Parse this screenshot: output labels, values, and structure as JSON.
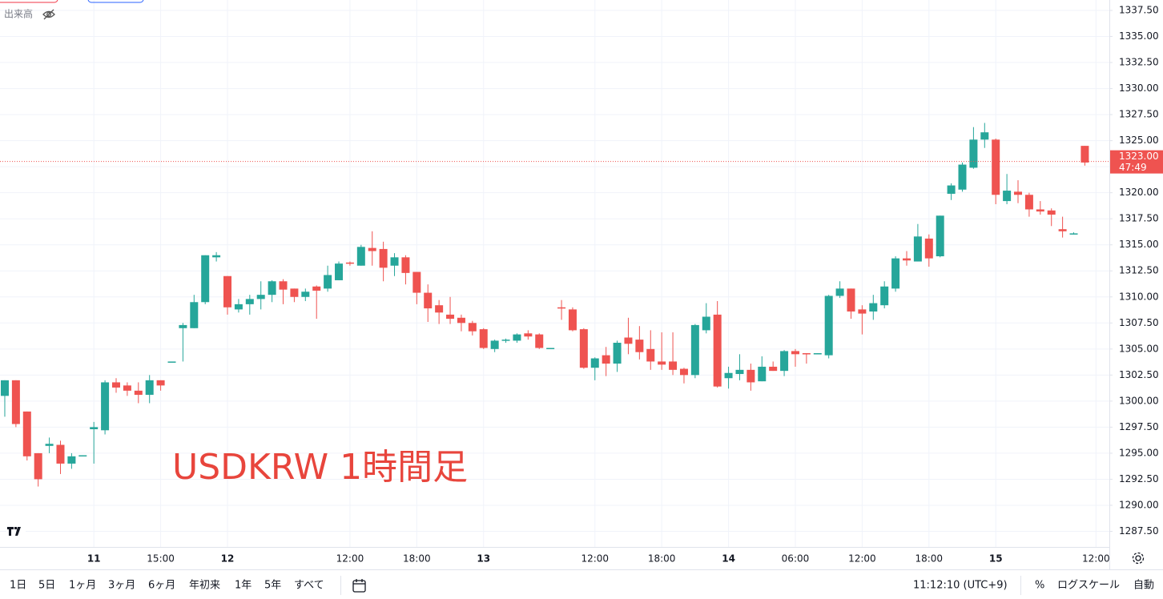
{
  "chart_data": {
    "type": "candlestick",
    "title": "USDKRW 1時間足",
    "x": [
      0,
      1,
      2,
      3,
      4,
      5,
      6,
      7,
      8,
      9,
      10,
      11,
      12,
      13,
      14,
      15,
      16,
      17,
      18,
      19,
      20,
      21,
      22,
      23,
      24,
      25,
      26,
      27,
      28,
      29,
      30,
      31,
      32,
      33,
      34,
      35,
      36,
      37,
      38,
      39,
      40,
      41,
      42,
      43,
      44,
      45,
      46,
      47,
      48,
      49,
      50,
      51,
      52,
      53,
      54,
      55,
      56,
      57,
      58,
      59,
      60,
      61,
      62,
      63,
      64,
      65,
      66,
      67,
      68,
      69,
      70,
      71,
      72,
      73,
      74,
      75,
      76,
      77,
      78,
      79,
      80,
      81,
      82,
      83,
      84,
      85,
      86,
      87,
      88,
      89,
      90,
      91,
      92,
      93,
      94,
      95,
      96,
      97
    ],
    "open": [
      1300.5,
      1302,
      1299,
      1295,
      1295.7,
      1295.8,
      1294,
      1294.7,
      1297.3,
      1297.2,
      1301.8,
      1301.5,
      1301,
      1300.6,
      1302,
      1303.8,
      1307,
      1307,
      1309.5,
      1313.8,
      1312,
      1308.8,
      1309.3,
      1309.8,
      1310.2,
      1311.5,
      1310.8,
      1310,
      1311,
      1310.8,
      1311.6,
      1313.3,
      1313,
      1314.7,
      1314.6,
      1313,
      1313.8,
      1312.4,
      1310.4,
      1309.2,
      1308.3,
      1308,
      1307.5,
      1306.9,
      1305,
      1305.8,
      1305.8,
      1306.5,
      1306.4,
      1305.1,
      1309,
      1308.8,
      1306.9,
      1303.2,
      1304.4,
      1303.6,
      1306.1,
      1305.9,
      1305,
      1303.8,
      1303.8,
      1303.1,
      1302.5,
      1306.8,
      1308.3,
      1302.2,
      1302.6,
      1303,
      1301.9,
      1303.3,
      1302.9,
      1304.8,
      1304.6,
      1304.5,
      1304.4,
      1310.1,
      1310.8,
      1308.8,
      1308.6,
      1309.2,
      1310.8,
      1313.7,
      1313.4,
      1315.6,
      1313.9,
      1319.9,
      1320.3,
      1322.4,
      1325.1,
      1325.1,
      1319.2,
      1320.1,
      1319.8,
      1318.4,
      1318.3,
      1316.5,
      1316.1,
      1324.5
    ],
    "high": [
      1302,
      1302,
      1299,
      1295,
      1296.5,
      1296.2,
      1295,
      1294.8,
      1298,
      1302,
      1302.2,
      1301.8,
      1301.8,
      1302.5,
      1302,
      1303.8,
      1307.5,
      1310.2,
      1314,
      1314.3,
      1312,
      1309.8,
      1310.2,
      1311.5,
      1311.6,
      1311.7,
      1310.8,
      1310.8,
      1311.1,
      1313,
      1313.4,
      1313.4,
      1315,
      1316.3,
      1315.3,
      1314.2,
      1314,
      1312.4,
      1311.2,
      1309.7,
      1310,
      1308.3,
      1307.7,
      1307,
      1305.9,
      1306,
      1306.5,
      1306.8,
      1306.5,
      1305.1,
      1309.7,
      1309,
      1307,
      1304.2,
      1305.2,
      1305.8,
      1308,
      1307.2,
      1306.8,
      1306.6,
      1306.6,
      1303.2,
      1307.4,
      1309.4,
      1309.6,
      1303.3,
      1304.5,
      1303.6,
      1304.3,
      1303.8,
      1304.9,
      1305,
      1304.6,
      1304.6,
      1310.2,
      1311.5,
      1310.8,
      1309.2,
      1310.2,
      1311.5,
      1313.9,
      1314.4,
      1317,
      1316,
      1317.8,
      1320.9,
      1322.9,
      1326.3,
      1326.7,
      1325.2,
      1321.8,
      1321.2,
      1320,
      1319.2,
      1318.5,
      1317.7,
      1316.2,
      1324.5
    ],
    "low": [
      1298.5,
      1297.5,
      1294.3,
      1291.8,
      1295,
      1293,
      1293.5,
      1294.7,
      1294,
      1296.8,
      1300.8,
      1300.5,
      1299.8,
      1299.8,
      1301,
      1303.8,
      1303.8,
      1307,
      1309.3,
      1313.4,
      1308.3,
      1308.5,
      1308.3,
      1308.8,
      1309.5,
      1309.3,
      1309.5,
      1309.6,
      1307.9,
      1310.5,
      1311.6,
      1313,
      1313,
      1313,
      1311.5,
      1312,
      1311.2,
      1309.3,
      1307.6,
      1307.4,
      1307.4,
      1306.7,
      1306.3,
      1305,
      1304.7,
      1305.6,
      1305.6,
      1305.9,
      1305,
      1305.1,
      1307.8,
      1306.7,
      1303.1,
      1302,
      1302.4,
      1302.8,
      1304.5,
      1304,
      1303,
      1303,
      1302.5,
      1301.7,
      1302.2,
      1306.5,
      1301.3,
      1301.2,
      1302,
      1301,
      1301.9,
      1302.9,
      1302.4,
      1303.3,
      1303.6,
      1304.5,
      1304.1,
      1309.9,
      1307.9,
      1306.4,
      1307.8,
      1308.9,
      1310.5,
      1313,
      1313.4,
      1312.9,
      1313.8,
      1319.3,
      1320.1,
      1322.3,
      1324.3,
      1318.9,
      1318.9,
      1319,
      1317.7,
      1317.9,
      1316.8,
      1315.7,
      1316,
      1322.6
    ],
    "close": [
      1302,
      1297.8,
      1294.7,
      1292.5,
      1295.9,
      1294,
      1294.7,
      1294.8,
      1297.5,
      1301.8,
      1301.3,
      1301,
      1300.6,
      1302,
      1301.5,
      1303.8,
      1307.3,
      1309.5,
      1314,
      1314,
      1309,
      1309.3,
      1309.8,
      1310.2,
      1311.5,
      1310.7,
      1310,
      1310.5,
      1310.6,
      1312.1,
      1313.2,
      1313.2,
      1314.8,
      1314.4,
      1312.8,
      1313.8,
      1312.3,
      1310.4,
      1308.9,
      1308.5,
      1307.9,
      1307.5,
      1306.7,
      1305.1,
      1305.8,
      1305.9,
      1306.4,
      1306.2,
      1305.1,
      1305.1,
      1308.9,
      1306.8,
      1303.2,
      1304.1,
      1303.6,
      1305.6,
      1305.5,
      1304.7,
      1303.8,
      1303.5,
      1303,
      1302.5,
      1307.3,
      1308.1,
      1301.4,
      1302.7,
      1303,
      1301.8,
      1303.3,
      1302.9,
      1304.8,
      1304.5,
      1304.5,
      1304.6,
      1310.1,
      1310.8,
      1308.6,
      1308.4,
      1309.4,
      1311,
      1313.7,
      1313.5,
      1315.8,
      1313.7,
      1317.8,
      1320.7,
      1322.7,
      1325.1,
      1325.8,
      1319.8,
      1320.2,
      1319.8,
      1318.4,
      1318.2,
      1317.9,
      1316.3,
      1316.1,
      1322.9
    ],
    "up_color": "#26a69a",
    "down_color": "#ef5350",
    "xlim": [
      -0.43,
      99.2
    ],
    "xticks": [
      {
        "value": 8,
        "label": "11"
      },
      {
        "value": 14,
        "label": "15:00"
      },
      {
        "value": 20,
        "label": "12"
      },
      {
        "value": 31,
        "label": "12:00"
      },
      {
        "value": 37,
        "label": "18:00"
      },
      {
        "value": 43,
        "label": "13"
      },
      {
        "value": 53,
        "label": "12:00"
      },
      {
        "value": 59,
        "label": "18:00"
      },
      {
        "value": 65,
        "label": "14"
      },
      {
        "value": 71,
        "label": "06:00"
      },
      {
        "value": 77,
        "label": "12:00"
      },
      {
        "value": 83,
        "label": "18:00"
      },
      {
        "value": 89,
        "label": "15"
      },
      {
        "value": 98,
        "label": "12:00"
      }
    ],
    "ylim": [
      1286,
      1338.5
    ],
    "yticks": [
      {
        "value": 1287.5,
        "label": "1287.50"
      },
      {
        "value": 1290,
        "label": "1290.00"
      },
      {
        "value": 1292.5,
        "label": "1292.50"
      },
      {
        "value": 1295,
        "label": "1295.00"
      },
      {
        "value": 1297.5,
        "label": "1297.50"
      },
      {
        "value": 1300,
        "label": "1300.00"
      },
      {
        "value": 1302.5,
        "label": "1302.50"
      },
      {
        "value": 1305,
        "label": "1305.00"
      },
      {
        "value": 1307.5,
        "label": "1307.50"
      },
      {
        "value": 1310,
        "label": "1310.00"
      },
      {
        "value": 1312.5,
        "label": "1312.50"
      },
      {
        "value": 1315,
        "label": "1315.00"
      },
      {
        "value": 1317.5,
        "label": "1317.50"
      },
      {
        "value": 1320,
        "label": "1320.00"
      },
      {
        "value": 1322.5,
        "label": "1322.50"
      },
      {
        "value": 1325,
        "label": "1325.00"
      },
      {
        "value": 1327.5,
        "label": "1327.50"
      },
      {
        "value": 1330,
        "label": "1330.00"
      },
      {
        "value": 1332.5,
        "label": "1332.50"
      },
      {
        "value": 1335,
        "label": "1335.00"
      },
      {
        "value": 1337.5,
        "label": "1337.50"
      }
    ],
    "grid": true,
    "last_price": {
      "value": 1323,
      "label": "1323.00"
    },
    "countdown": "47:49"
  },
  "volume_label": "出来高",
  "toolbar": {
    "ranges": [
      "1日",
      "5日",
      "1ヶ月",
      "3ヶ月",
      "6ヶ月",
      "年初来",
      "1年",
      "5年",
      "すべて"
    ],
    "time": "11:12:10 (UTC+9)",
    "percent": "%",
    "log": "ログスケール",
    "auto": "自動"
  }
}
